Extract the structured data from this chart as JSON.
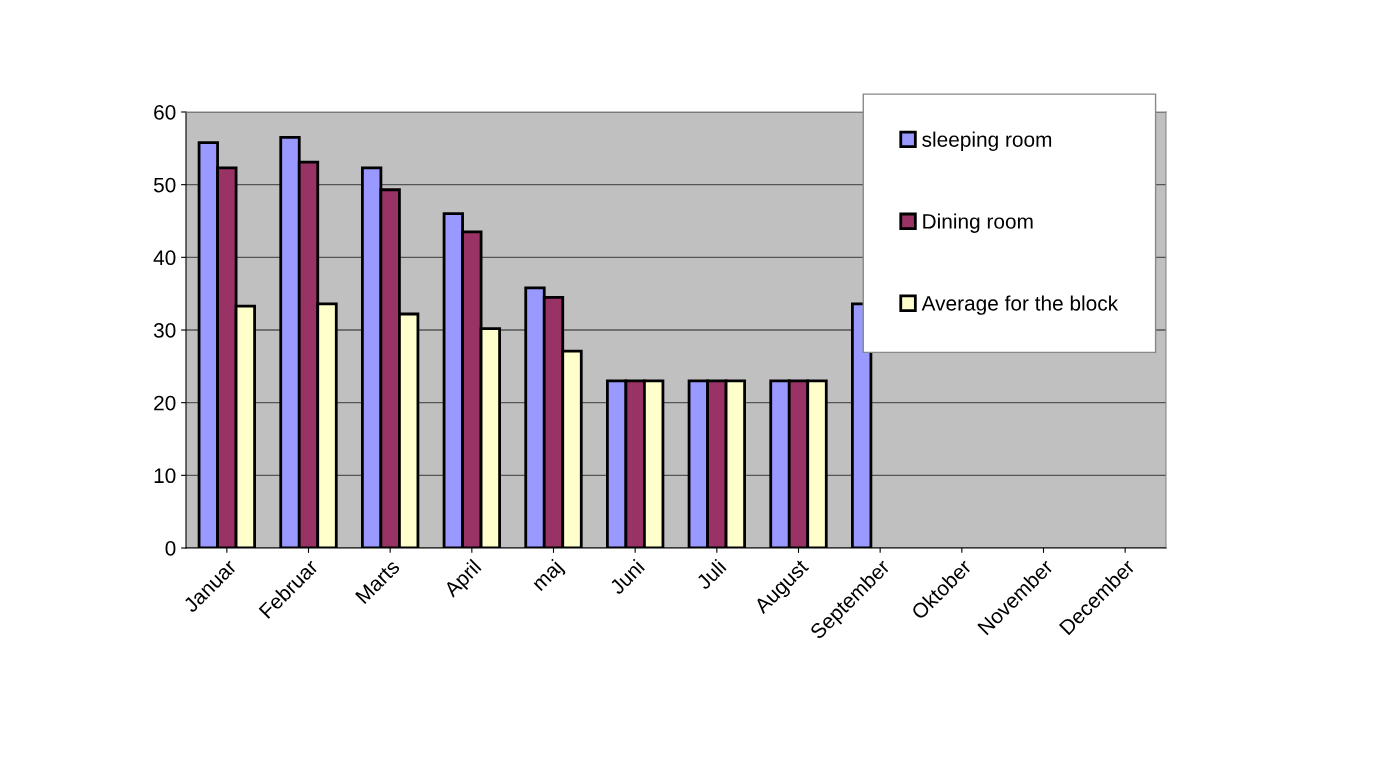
{
  "chart_data": {
    "type": "bar",
    "categories": [
      "Januar",
      "Februar",
      "Marts",
      "April",
      "maj",
      "Juni",
      "Juli",
      "August",
      "September",
      "Oktober",
      "November",
      "December"
    ],
    "series": [
      {
        "name": "sleeping room",
        "color": "#9999ff",
        "values": [
          55.8,
          56.5,
          52.3,
          46.0,
          35.8,
          23,
          23,
          23,
          33.6,
          null,
          null,
          null
        ]
      },
      {
        "name": "Dining room",
        "color": "#993366",
        "values": [
          52.3,
          53.1,
          49.3,
          43.5,
          34.5,
          23,
          23,
          23,
          null,
          null,
          null,
          null
        ]
      },
      {
        "name": "Average for the block",
        "color": "#ffffcc",
        "values": [
          33.3,
          33.6,
          32.2,
          30.2,
          27.1,
          23,
          23,
          23,
          null,
          null,
          null,
          null
        ]
      }
    ],
    "ylim": [
      0,
      60
    ],
    "yticks": [
      0,
      10,
      20,
      30,
      40,
      50,
      60
    ],
    "grid": "y",
    "legend": "top right"
  }
}
